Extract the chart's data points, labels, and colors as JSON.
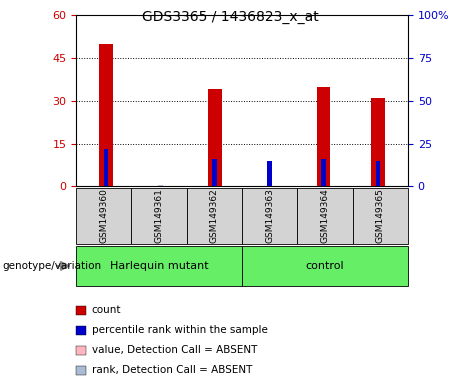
{
  "title": "GDS3365 / 1436823_x_at",
  "samples": [
    "GSM149360",
    "GSM149361",
    "GSM149362",
    "GSM149363",
    "GSM149364",
    "GSM149365"
  ],
  "count_values": [
    50,
    0,
    34,
    0,
    35,
    31
  ],
  "count_absent": [
    false,
    false,
    false,
    true,
    false,
    false
  ],
  "rank_values": [
    22,
    0.7,
    16,
    15,
    16,
    15
  ],
  "rank_absent": [
    false,
    true,
    false,
    false,
    false,
    false
  ],
  "count_color": "#CC0000",
  "count_absent_color": "#FFB6C1",
  "rank_color": "#0000CC",
  "rank_absent_color": "#AABBD4",
  "ylim_left": [
    0,
    60
  ],
  "ylim_right": [
    0,
    100
  ],
  "yticks_left": [
    0,
    15,
    30,
    45,
    60
  ],
  "yticks_right": [
    0,
    25,
    50,
    75,
    100
  ],
  "group_spans": [
    {
      "label": "Harlequin mutant",
      "start": 0,
      "end": 3
    },
    {
      "label": "control",
      "start": 3,
      "end": 6
    }
  ],
  "legend_items": [
    {
      "color": "#CC0000",
      "label": "count"
    },
    {
      "color": "#0000CC",
      "label": "percentile rank within the sample"
    },
    {
      "color": "#FFB6C1",
      "label": "value, Detection Call = ABSENT"
    },
    {
      "color": "#AABBD4",
      "label": "rank, Detection Call = ABSENT"
    }
  ],
  "title_fontsize": 10,
  "tick_fontsize": 8,
  "legend_fontsize": 7.5,
  "sample_fontsize": 6.5,
  "group_fontsize": 8
}
